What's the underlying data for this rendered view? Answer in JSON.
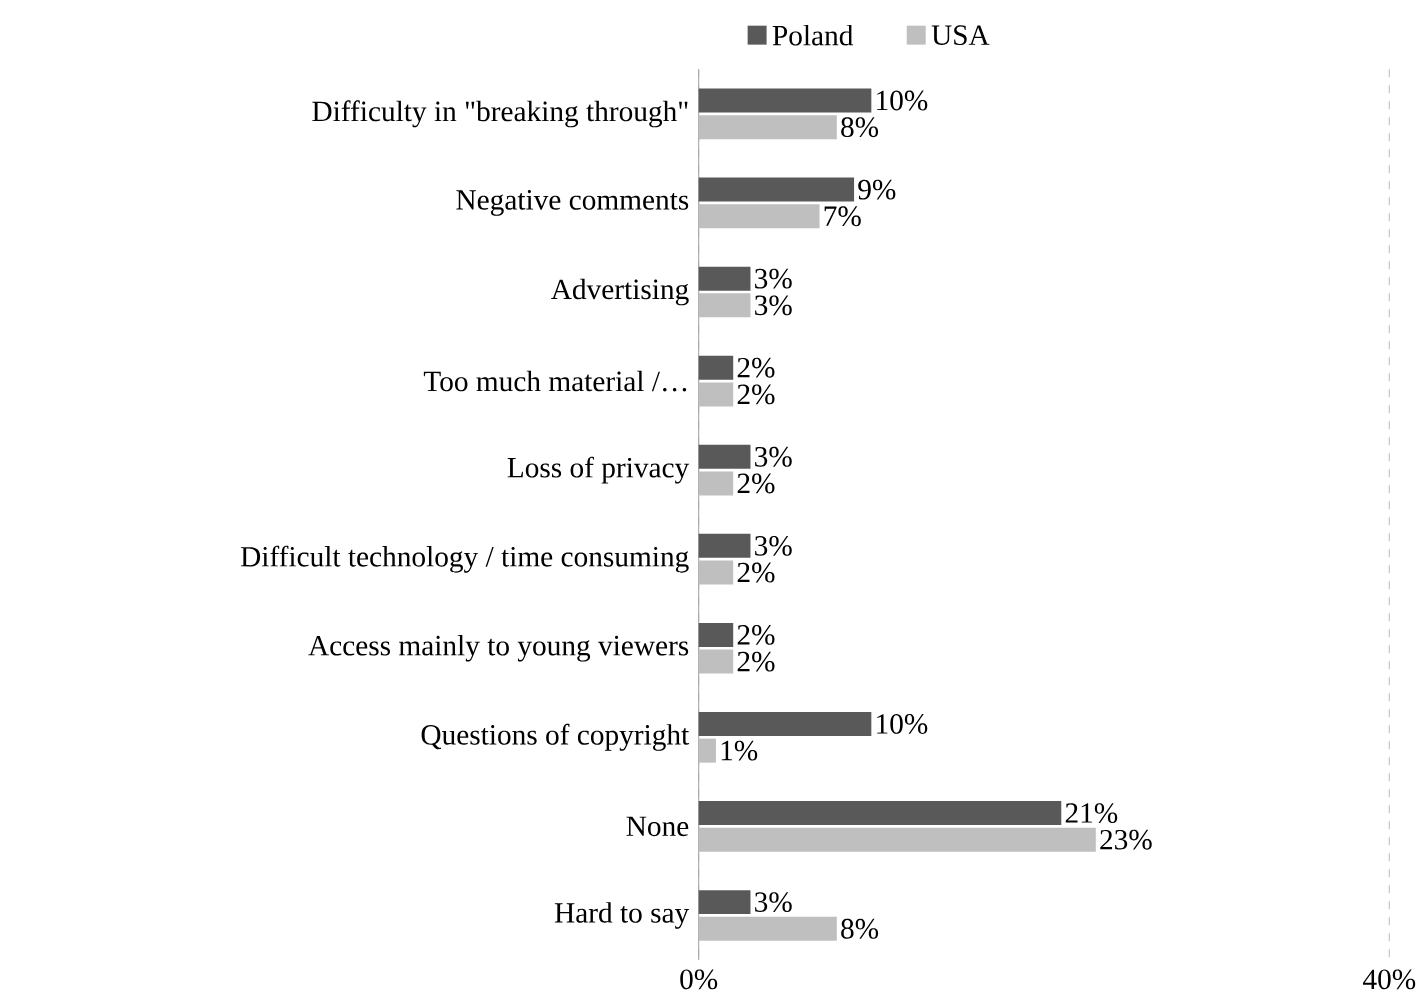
{
  "chart_data": {
    "type": "bar",
    "orientation": "horizontal",
    "categories": [
      "Difficulty in \"breaking through\"",
      "Negative comments",
      "Advertising",
      "Too much material /…",
      "Loss of privacy",
      "Difficult technology / time consuming",
      "Access mainly to young viewers",
      "Questions of copyright",
      "None",
      "Hard to say"
    ],
    "series": [
      {
        "name": "Poland",
        "color": "#595959",
        "values": [
          10,
          9,
          3,
          2,
          3,
          3,
          2,
          10,
          21,
          3
        ],
        "value_labels": [
          "10%",
          "9%",
          "3%",
          "2%",
          "3%",
          "3%",
          "2%",
          "10%",
          "21%",
          "3%"
        ]
      },
      {
        "name": "USA",
        "color": "#bfbfbf",
        "values": [
          8,
          7,
          3,
          2,
          2,
          2,
          2,
          1,
          23,
          8
        ],
        "value_labels": [
          "8%",
          "7%",
          "3%",
          "2%",
          "2%",
          "2%",
          "2%",
          "1%",
          "23%",
          "8%"
        ]
      }
    ],
    "xlim": [
      0,
      40
    ],
    "xticks": [
      {
        "value": 0,
        "label": "0%"
      },
      {
        "value": 40,
        "label": "40%"
      }
    ],
    "grid": "x",
    "legend": "top"
  }
}
